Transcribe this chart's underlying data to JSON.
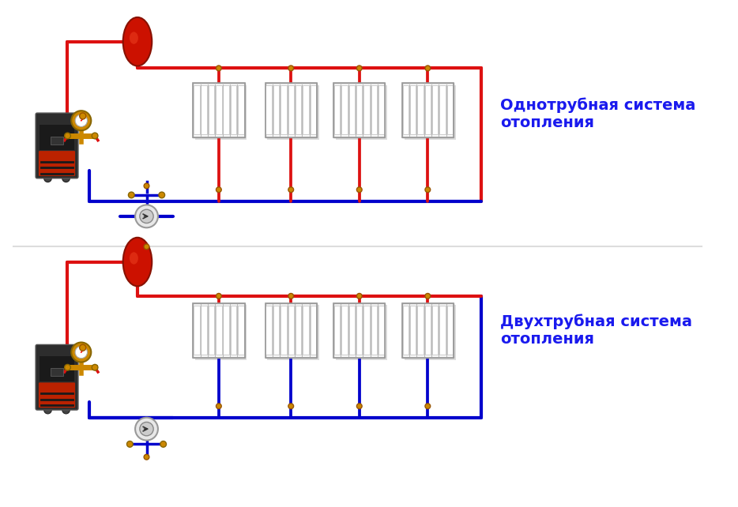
{
  "bg_color": "#ffffff",
  "text_color": "#1a1aee",
  "label1": "Однотрубная система\nотопления",
  "label2": "Двухтрубная система\nотопления",
  "label_fontsize": 14,
  "pipe_red": "#dd1111",
  "pipe_blue": "#0000cc",
  "pipe_lw": 3.0,
  "boiler_dark": "#2a2a2a",
  "boiler_red": "#cc2200",
  "tank_red": "#cc2200",
  "valve_color": "#cc8800",
  "gauge_color": "#cc9900",
  "pump_color": "#cc9900",
  "radiator_fill": "#f8f8f8",
  "radiator_edge": "#aaaaaa"
}
